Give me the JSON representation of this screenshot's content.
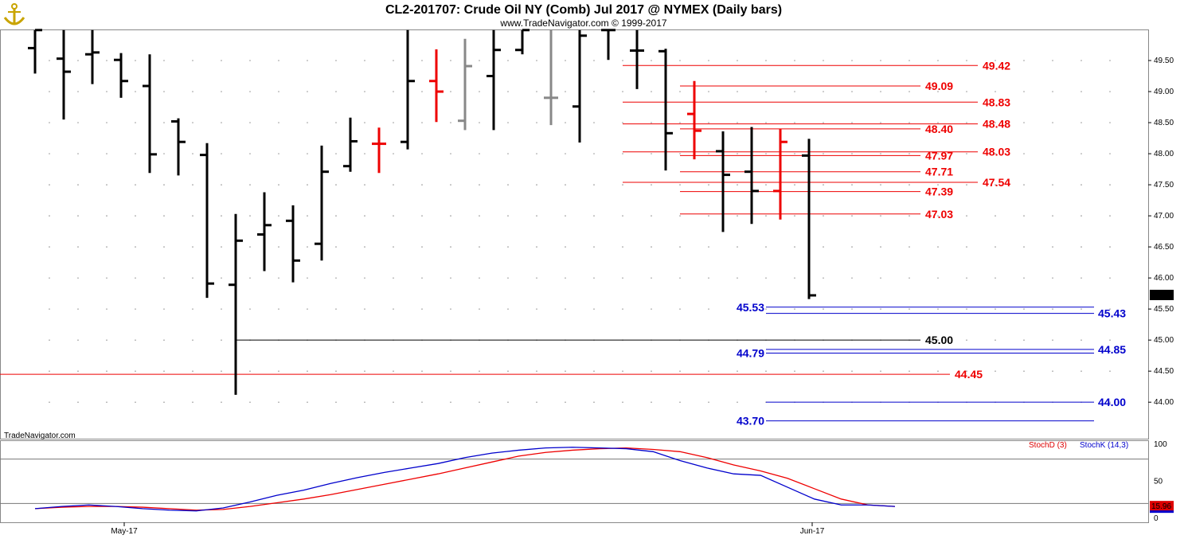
{
  "header": {
    "title": "CL2-201707:  Crude Oil NY (Comb) Jul 2017 @ NYMEX  (Daily bars)",
    "subtitle": "www.TradeNavigator.com © 1999-2017",
    "watermark": "TradeNavigator.com",
    "logo_icon": "anchor-logo-icon"
  },
  "colors": {
    "bar": "#000000",
    "bar_up_accent": "#22dd22",
    "bar_red": "#ee0000",
    "bar_gray": "#888888",
    "red_level": "#dd0000",
    "blue_level": "#0000cc",
    "black_level": "#000000",
    "stoch_d": "#dd0000",
    "stoch_k": "#0000cc"
  },
  "chart_data": [
    {
      "type": "ohlc",
      "title": "CL2-201707:  Crude Oil NY (Comb) Jul 2017 @ NYMEX  (Daily bars)",
      "ylim": [
        43.4,
        50.0
      ],
      "y_ticks": [
        "49.50",
        "49.00",
        "48.50",
        "48.00",
        "47.50",
        "47.00",
        "46.50",
        "46.00",
        "45.50",
        "45.00",
        "44.50",
        "44.00"
      ],
      "x_ticks": [
        {
          "label": "May-17",
          "bar_index": 3
        },
        {
          "label": "Jun-17",
          "bar_index": 27
        }
      ],
      "last_price": "45.72",
      "bars": [
        {
          "o": 49.7,
          "h": 49.99,
          "l": 49.29,
          "c": 49.99,
          "color": "black"
        },
        {
          "o": 49.53,
          "h": 49.99,
          "l": 48.55,
          "c": 49.32,
          "color": "black"
        },
        {
          "o": 49.6,
          "h": 49.99,
          "l": 49.12,
          "c": 49.63,
          "color": "black"
        },
        {
          "o": 49.51,
          "h": 49.62,
          "l": 48.9,
          "c": 49.17,
          "color": "black"
        },
        {
          "o": 49.09,
          "h": 49.6,
          "l": 47.69,
          "c": 47.99,
          "color": "black"
        },
        {
          "o": 48.52,
          "h": 48.57,
          "l": 47.65,
          "c": 48.19,
          "color": "black"
        },
        {
          "o": 47.98,
          "h": 48.17,
          "l": 45.68,
          "c": 45.91,
          "color": "black"
        },
        {
          "o": 45.89,
          "h": 47.03,
          "l": 44.12,
          "c": 46.6,
          "color": "black"
        },
        {
          "o": 46.7,
          "h": 47.38,
          "l": 46.11,
          "c": 46.85,
          "color": "black"
        },
        {
          "o": 46.92,
          "h": 47.17,
          "l": 45.93,
          "c": 46.28,
          "color": "black"
        },
        {
          "o": 46.55,
          "h": 48.13,
          "l": 46.28,
          "c": 47.71,
          "color": "black"
        },
        {
          "o": 47.8,
          "h": 48.58,
          "l": 47.71,
          "c": 48.2,
          "color": "black"
        },
        {
          "o": 48.16,
          "h": 48.42,
          "l": 47.69,
          "c": 48.16,
          "color": "red"
        },
        {
          "o": 48.19,
          "h": 49.99,
          "l": 48.07,
          "c": 49.17,
          "color": "black"
        },
        {
          "o": 49.17,
          "h": 49.68,
          "l": 48.51,
          "c": 49.0,
          "color": "red"
        },
        {
          "o": 48.53,
          "h": 49.85,
          "l": 48.38,
          "c": 49.41,
          "color": "gray"
        },
        {
          "o": 49.25,
          "h": 49.99,
          "l": 48.38,
          "c": 49.67,
          "color": "black"
        },
        {
          "o": 49.67,
          "h": 49.99,
          "l": 49.6,
          "c": 49.99,
          "color": "black"
        },
        {
          "o": 48.9,
          "h": 49.99,
          "l": 48.46,
          "c": 48.9,
          "color": "gray"
        },
        {
          "o": 48.76,
          "h": 49.99,
          "l": 48.18,
          "c": 49.9,
          "color": "black"
        },
        {
          "o": 49.99,
          "h": 49.99,
          "l": 49.51,
          "c": 49.99,
          "color": "black"
        },
        {
          "o": 49.66,
          "h": 49.99,
          "l": 49.04,
          "c": 49.66,
          "color": "black"
        },
        {
          "o": 49.65,
          "h": 49.69,
          "l": 47.73,
          "c": 48.33,
          "color": "black"
        },
        {
          "o": 48.64,
          "h": 49.17,
          "l": 47.91,
          "c": 48.37,
          "color": "red"
        },
        {
          "o": 48.04,
          "h": 48.36,
          "l": 46.74,
          "c": 47.66,
          "color": "black"
        },
        {
          "o": 47.71,
          "h": 48.43,
          "l": 46.87,
          "c": 47.4,
          "color": "black"
        },
        {
          "o": 47.4,
          "h": 48.4,
          "l": 46.94,
          "c": 48.19,
          "color": "red"
        },
        {
          "o": 47.97,
          "h": 48.24,
          "l": 45.66,
          "c": 45.72,
          "color": "black"
        }
      ],
      "levels": [
        {
          "value": 49.42,
          "label": "49.42",
          "color": "red",
          "from_bar": 20.5,
          "label_pos": "right-far"
        },
        {
          "value": 49.09,
          "label": "49.09",
          "color": "red",
          "from_bar": 22.5,
          "label_pos": "right-mid"
        },
        {
          "value": 48.83,
          "label": "48.83",
          "color": "red",
          "from_bar": 20.5,
          "label_pos": "right-far"
        },
        {
          "value": 48.48,
          "label": "48.48",
          "color": "red",
          "from_bar": 20.5,
          "label_pos": "right-far"
        },
        {
          "value": 48.4,
          "label": "48.40",
          "color": "red",
          "from_bar": 22.5,
          "label_pos": "right-mid"
        },
        {
          "value": 48.03,
          "label": "48.03",
          "color": "red",
          "from_bar": 20.5,
          "label_pos": "right-far"
        },
        {
          "value": 47.97,
          "label": "47.97",
          "color": "red",
          "from_bar": 22.5,
          "label_pos": "right-mid"
        },
        {
          "value": 47.71,
          "label": "47.71",
          "color": "red",
          "from_bar": 22.5,
          "label_pos": "right-mid"
        },
        {
          "value": 47.54,
          "label": "47.54",
          "color": "red",
          "from_bar": 20.5,
          "label_pos": "right-far"
        },
        {
          "value": 47.39,
          "label": "47.39",
          "color": "red",
          "from_bar": 22.5,
          "label_pos": "right-mid"
        },
        {
          "value": 47.03,
          "label": "47.03",
          "color": "red",
          "from_bar": 22.5,
          "label_pos": "right-mid"
        },
        {
          "value": 45.53,
          "label": "45.53",
          "color": "blue",
          "from_bar": 25.5,
          "label_pos": "left-of-line"
        },
        {
          "value": 45.43,
          "label": "45.43",
          "color": "blue",
          "from_bar": 25.5,
          "label_pos": "right-far"
        },
        {
          "value": 45.0,
          "label": "45.00",
          "color": "black",
          "from_bar": 7,
          "label_pos": "right-mid"
        },
        {
          "value": 44.85,
          "label": "44.85",
          "color": "blue",
          "from_bar": 25.5,
          "label_pos": "right-far"
        },
        {
          "value": 44.79,
          "label": "44.79",
          "color": "blue",
          "from_bar": 25.5,
          "label_pos": "left-of-line"
        },
        {
          "value": 44.45,
          "label": "44.45",
          "color": "red",
          "from_bar": -2,
          "label_pos": "right-near"
        },
        {
          "value": 44.0,
          "label": "44.00",
          "color": "blue",
          "from_bar": 25.5,
          "label_pos": "right-far"
        },
        {
          "value": 43.7,
          "label": "43.70",
          "color": "blue",
          "from_bar": 25.5,
          "label_pos": "left-of-line"
        }
      ]
    },
    {
      "type": "line",
      "legend": [
        "StochD (3)",
        "StochK (14,3)"
      ],
      "ylim": [
        0,
        100
      ],
      "y_ticks": [
        "100",
        "50",
        "0"
      ],
      "reference_lines": [
        80,
        20
      ],
      "last_value": "15.96",
      "series": [
        {
          "name": "StochD (3)",
          "color": "red",
          "values": [
            13,
            15,
            16,
            16,
            15,
            13,
            11,
            12,
            16,
            21,
            26,
            32,
            39,
            46,
            53,
            60,
            68,
            76,
            84,
            89,
            92,
            94,
            95,
            93,
            90,
            82,
            72,
            64,
            54,
            40,
            26,
            18,
            16
          ]
        },
        {
          "name": "StochK (14,3)",
          "color": "blue",
          "values": [
            13,
            16,
            18,
            16,
            13,
            11,
            10,
            14,
            22,
            31,
            38,
            47,
            55,
            62,
            68,
            74,
            82,
            88,
            92,
            95,
            96,
            95,
            94,
            90,
            78,
            68,
            60,
            58,
            42,
            26,
            18,
            18,
            16
          ]
        }
      ]
    }
  ]
}
